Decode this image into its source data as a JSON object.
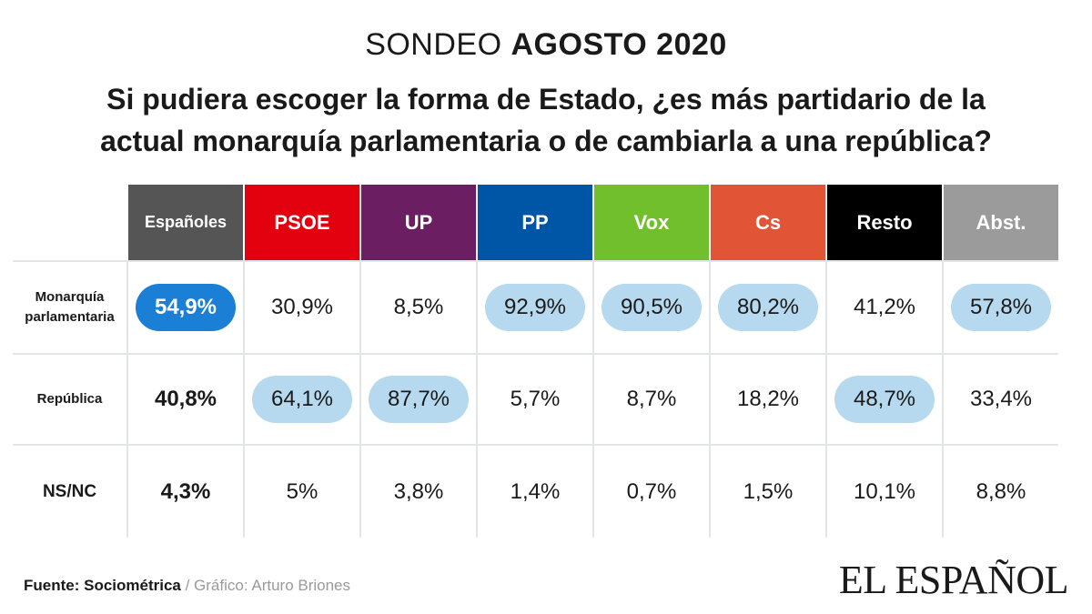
{
  "header": {
    "kicker_light": "SONDEO ",
    "kicker_bold": "AGOSTO 2020",
    "question": "Si pudiera escoger la forma de Estado, ¿es más partidario de la actual monarquía parlamentaria o de cambiarla a una república?"
  },
  "chart_data": {
    "type": "table",
    "categories": [
      "Españoles",
      "PSOE",
      "UP",
      "PP",
      "Vox",
      "Cs",
      "Resto",
      "Abst."
    ],
    "column_colors": [
      "#555555",
      "#e3000f",
      "#6b1e61",
      "#0056a6",
      "#71bf2c",
      "#e15435",
      "#000000",
      "#9b9b9b"
    ],
    "rows": [
      {
        "label": "Monarquía parlamentaria",
        "label_lines": [
          "Monarquía",
          "parlamentaria"
        ],
        "values": [
          "54,9%",
          "30,9%",
          "8,5%",
          "92,9%",
          "90,5%",
          "80,2%",
          "41,2%",
          "57,8%"
        ],
        "numeric": [
          54.9,
          30.9,
          8.5,
          92.9,
          90.5,
          80.2,
          41.2,
          57.8
        ]
      },
      {
        "label": "República",
        "label_lines": [
          "República"
        ],
        "values": [
          "40,8%",
          "64,1%",
          "87,7%",
          "5,7%",
          "8,7%",
          "18,2%",
          "48,7%",
          "33,4%"
        ],
        "numeric": [
          40.8,
          64.1,
          87.7,
          5.7,
          8.7,
          18.2,
          48.7,
          33.4
        ]
      },
      {
        "label": "NS/NC",
        "label_lines": [
          "NS/NC"
        ],
        "values": [
          "4,3%",
          "5%",
          "3,8%",
          "1,4%",
          "0,7%",
          "1,5%",
          "10,1%",
          "8,8%"
        ],
        "numeric": [
          4.3,
          5,
          3.8,
          1.4,
          0.7,
          1.5,
          10.1,
          8.8
        ]
      }
    ],
    "highlight": "majority answer per column shown with a rounded pill; Españoles majority in strong blue",
    "highlight_colors": {
      "strong": "#1b7fd6",
      "light": "#b6d9ef"
    }
  },
  "footer": {
    "source_label": "Fuente: Sociométrica",
    "separator": " / ",
    "credit": "Gráfico: Arturo Briones",
    "logo": "EL ESPAÑOL"
  }
}
